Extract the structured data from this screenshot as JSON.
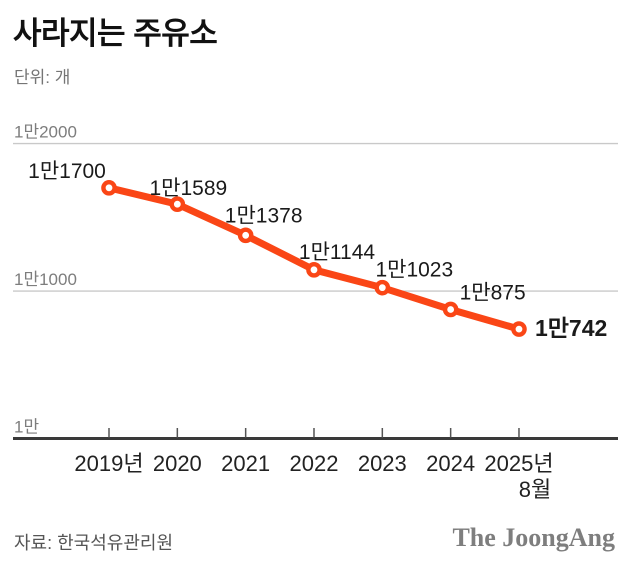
{
  "title": "사라지는 주유소",
  "unit_label": "단위: 개",
  "source_label": "자료: 한국석유관리원",
  "brand": "The JoongAng",
  "colors": {
    "accent": "#fa4616",
    "grid": "#c9c9c9",
    "axis": "#3a3a3a",
    "tick": "#555555",
    "y_label": "#7d7d7d",
    "x_label": "#222222",
    "point_label": "#1a1a1a",
    "marker_fill": "#ffffff"
  },
  "chart_data": {
    "type": "line",
    "categories": [
      "2019년",
      "2020",
      "2021",
      "2022",
      "2023",
      "2024",
      "2025년\n8월"
    ],
    "values": [
      11700,
      11589,
      11378,
      11144,
      11023,
      10875,
      10742
    ],
    "point_labels": [
      "1만1700",
      "1만1589",
      "1만1378",
      "1만1144",
      "1만1023",
      "1만875",
      "1만742"
    ],
    "emphasized_point": "1만742",
    "yticks": [
      {
        "value": 12000,
        "label": "1만2000"
      },
      {
        "value": 11000,
        "label": "1만1000"
      },
      {
        "value": 10000,
        "label": "1만"
      }
    ],
    "ylim": [
      10000,
      12300
    ],
    "grid": true,
    "legend": "none",
    "title": "사라지는 주유소",
    "ylabel": "개"
  }
}
